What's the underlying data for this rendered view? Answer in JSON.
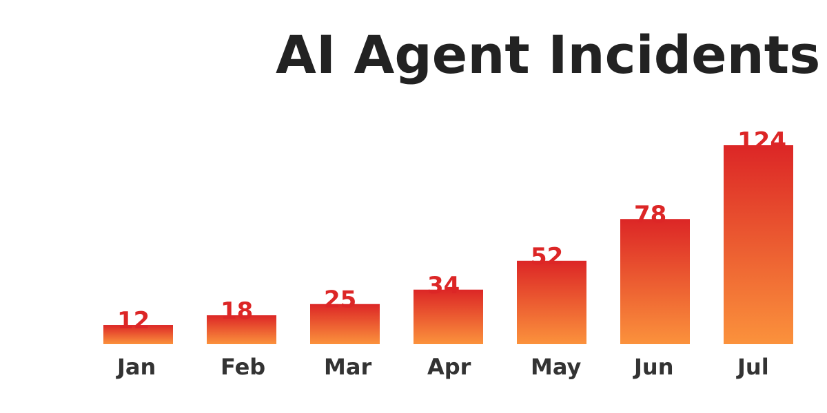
{
  "chart_data": {
    "type": "bar",
    "title": "AI Agent Incidents",
    "categories": [
      "Jan",
      "Feb",
      "Mar",
      "Apr",
      "May",
      "Jun",
      "Jul"
    ],
    "values": [
      12,
      18,
      25,
      34,
      52,
      78,
      124
    ],
    "gradient": [
      "#dc2626",
      "#fb923c"
    ]
  }
}
